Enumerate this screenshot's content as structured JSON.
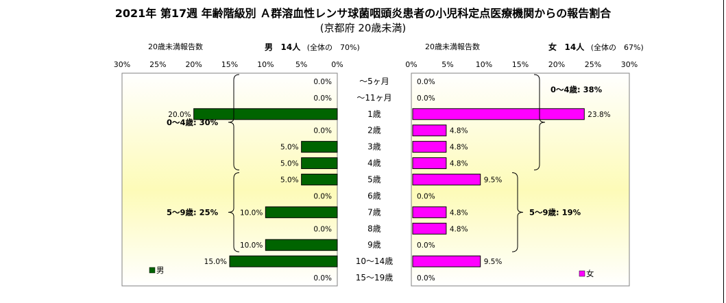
{
  "title": "2021年 第17週 年齢階級別 Ａ群溶血性レンサ球菌咽頭炎患者の小児科定点医療機関からの報告割合",
  "subtitle": "(京都府 20歳未満)",
  "age_groups": [
    "～5ヶ月",
    "～11ヶ月",
    "1歳",
    "2歳",
    "3歳",
    "4歳",
    "5歳",
    "6歳",
    "7歳",
    "8歳",
    "9歳",
    "10～14歳",
    "15～19歳"
  ],
  "chart_data": [
    {
      "type": "bar",
      "orientation": "horizontal",
      "x_direction": "reversed",
      "caption": "20歳未満報告数",
      "summary_name": "男",
      "summary_count": "14人",
      "summary_share": "(全体の　70%)",
      "categories": [
        "～5ヶ月",
        "～11ヶ月",
        "1歳",
        "2歳",
        "3歳",
        "4歳",
        "5歳",
        "6歳",
        "7歳",
        "8歳",
        "9歳",
        "10～14歳",
        "15～19歳"
      ],
      "series": [
        {
          "name": "男",
          "values": [
            0.0,
            0.0,
            20.0,
            0.0,
            5.0,
            5.0,
            5.0,
            0.0,
            10.0,
            0.0,
            10.0,
            15.0,
            0.0
          ],
          "color": "#006400"
        }
      ],
      "value_labels": [
        "0.0%",
        "0.0%",
        "20.0%",
        "0.0%",
        "5.0%",
        "5.0%",
        "5.0%",
        "0.0%",
        "10.0%",
        "0.0%",
        "10.0%",
        "15.0%",
        "0.0%"
      ],
      "xlim": [
        0,
        30
      ],
      "xticks": [
        "30%",
        "25%",
        "20%",
        "15%",
        "10%",
        "5%",
        "0%"
      ],
      "annotations": [
        "0～4歳: 30%",
        "5～9歳: 25%"
      ],
      "legend": "bottom-left"
    },
    {
      "type": "bar",
      "orientation": "horizontal",
      "caption": "20歳未満報告数",
      "summary_name": "女",
      "summary_count": "14人",
      "summary_share": "(全体の　67%)",
      "categories": [
        "～5ヶ月",
        "～11ヶ月",
        "1歳",
        "2歳",
        "3歳",
        "4歳",
        "5歳",
        "6歳",
        "7歳",
        "8歳",
        "9歳",
        "10～14歳",
        "15～19歳"
      ],
      "series": [
        {
          "name": "女",
          "values": [
            0.0,
            0.0,
            23.8,
            4.8,
            4.8,
            4.8,
            9.5,
            0.0,
            4.8,
            4.8,
            0.0,
            9.5,
            0.0
          ],
          "color": "#ff00ff"
        }
      ],
      "value_labels": [
        "0.0%",
        "0.0%",
        "23.8%",
        "4.8%",
        "4.8%",
        "4.8%",
        "9.5%",
        "0.0%",
        "4.8%",
        "4.8%",
        "0.0%",
        "9.5%",
        "0.0%"
      ],
      "xlim": [
        0,
        30
      ],
      "xticks": [
        "0%",
        "5%",
        "10%",
        "15%",
        "20%",
        "25%",
        "30%"
      ],
      "annotations": [
        "0～4歳: 38%",
        "5～9歳: 19%"
      ],
      "legend": "bottom-right"
    }
  ]
}
